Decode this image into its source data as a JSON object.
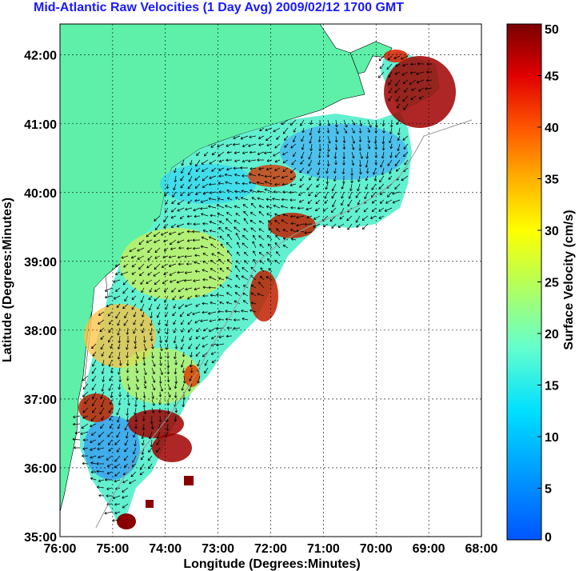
{
  "title": "Mid-Atlantic Raw Velocities (1 Day Avg) 2009/02/12 1700 GMT",
  "map": {
    "xlabel": "Longitude (Degrees:Minutes)",
    "ylabel": "Latitude (Degrees:Minutes)",
    "lon_ticks": [
      "76:00",
      "75:00",
      "74:00",
      "73:00",
      "72:00",
      "71:00",
      "70:00",
      "69:00",
      "68:00"
    ],
    "lat_ticks": [
      "42:00",
      "41:00",
      "40:00",
      "39:00",
      "38:00",
      "37:00",
      "36:00",
      "35:00"
    ],
    "lon_range": [
      -76,
      -68
    ],
    "lat_range": [
      35,
      42.45
    ],
    "grid": "dotted",
    "land_color": "#5ef0a8",
    "water_color": "#ffffff"
  },
  "colorbar": {
    "label": "Surface Velocity (cm/s)",
    "ticks": [
      "50",
      "45",
      "40",
      "35",
      "30",
      "25",
      "20",
      "15",
      "10",
      "5",
      "0"
    ],
    "range": [
      0,
      50
    ],
    "colormap": "jet"
  }
}
